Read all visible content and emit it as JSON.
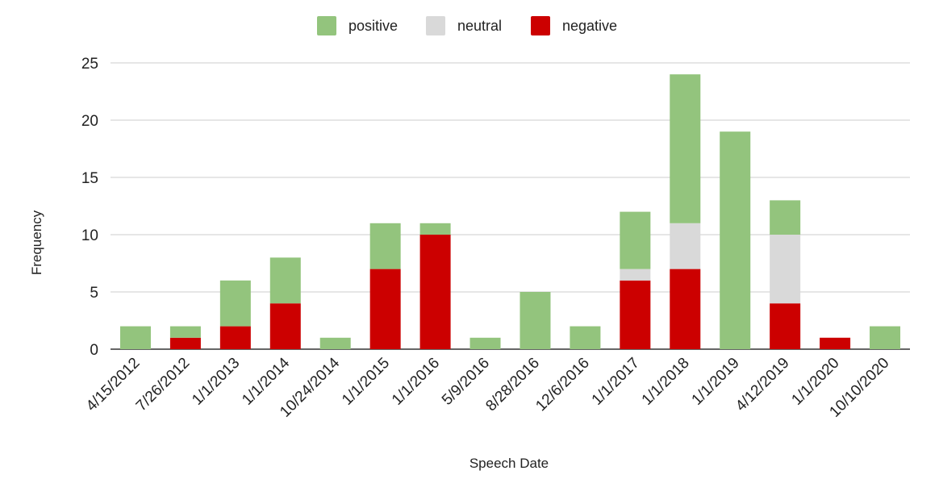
{
  "chart_data": {
    "type": "bar",
    "stacked": true,
    "title": "",
    "xlabel": "Speech Date",
    "ylabel": "Frequency",
    "ylim": [
      0,
      25
    ],
    "yticks": [
      0,
      5,
      10,
      15,
      20,
      25
    ],
    "grid": true,
    "legend_position": "top",
    "categories": [
      "4/15/2012",
      "7/26/2012",
      "1/1/2013",
      "1/1/2014",
      "10/24/2014",
      "1/1/2015",
      "1/1/2016",
      "5/9/2016",
      "8/28/2016",
      "12/6/2016",
      "1/1/2017",
      "1/1/2018",
      "1/1/2019",
      "4/12/2019",
      "1/1/2020",
      "10/10/2020"
    ],
    "series": [
      {
        "name": "negative",
        "color": "#cc0000",
        "values": [
          0,
          1,
          2,
          4,
          0,
          7,
          10,
          0,
          0,
          0,
          6,
          7,
          0,
          4,
          1,
          0
        ]
      },
      {
        "name": "neutral",
        "color": "#d9d9d9",
        "values": [
          0,
          0,
          0,
          0,
          0,
          0,
          0,
          0,
          0,
          0,
          1,
          4,
          0,
          6,
          0,
          0
        ]
      },
      {
        "name": "positive",
        "color": "#93c47d",
        "values": [
          2,
          1,
          4,
          4,
          1,
          4,
          1,
          1,
          5,
          2,
          5,
          13,
          19,
          3,
          0,
          2
        ]
      }
    ],
    "legend_order": [
      "positive",
      "neutral",
      "negative"
    ]
  }
}
